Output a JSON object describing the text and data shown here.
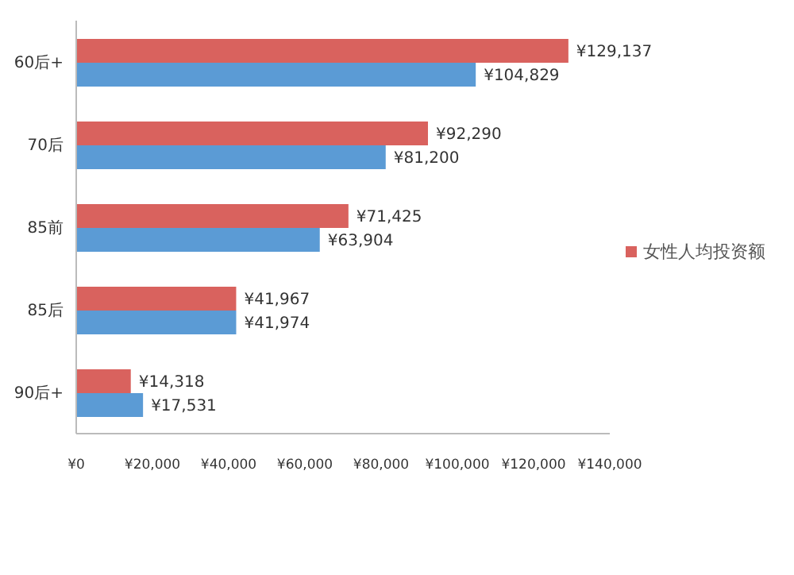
{
  "chart_data": {
    "type": "bar",
    "orientation": "horizontal",
    "categories": [
      "60后+",
      "70后",
      "85前",
      "85后",
      "90后+"
    ],
    "series": [
      {
        "name": "女性人均投资额",
        "color": "#d9625e",
        "values": [
          129137,
          92290,
          71425,
          41967,
          14318
        ],
        "value_labels": [
          "¥129,137",
          "¥92,290",
          "¥71,425",
          "¥41,967",
          "¥14,318"
        ]
      },
      {
        "color": "#5b9bd5",
        "values": [
          104829,
          81200,
          63904,
          41974,
          17531
        ],
        "value_labels": [
          "¥104,829",
          "¥81,200",
          "¥63,904",
          "¥41,974",
          "¥17,531"
        ]
      }
    ],
    "xlim": [
      0,
      140000
    ],
    "xticks": [
      {
        "value": 0,
        "label": "¥0"
      },
      {
        "value": 20000,
        "label": "¥20,000"
      },
      {
        "value": 40000,
        "label": "¥40,000"
      },
      {
        "value": 60000,
        "label": "¥60,000"
      },
      {
        "value": 80000,
        "label": "¥80,000"
      },
      {
        "value": 100000,
        "label": "¥100,000"
      },
      {
        "value": 120000,
        "label": "¥120,000"
      },
      {
        "value": 140000,
        "label": "¥140,000"
      }
    ],
    "grid": false,
    "legend": "right"
  }
}
